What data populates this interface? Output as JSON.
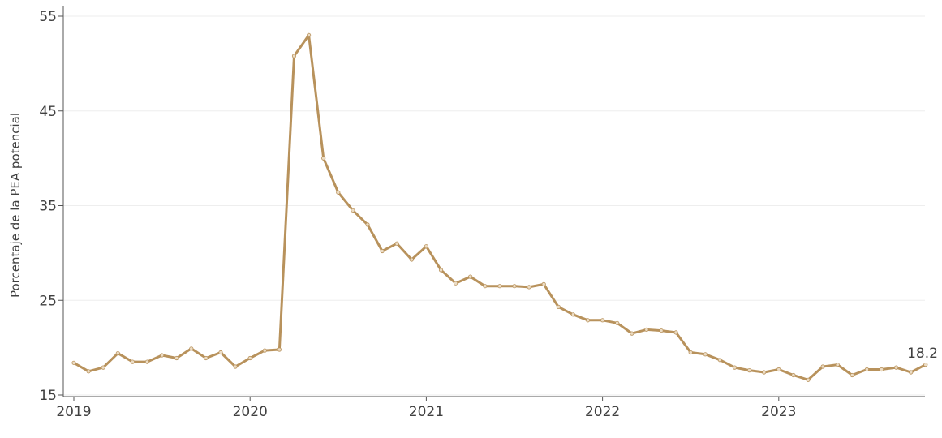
{
  "chart_data": {
    "type": "line",
    "title": "",
    "xlabel": "",
    "ylabel": "Porcentaje de la PEA potencial",
    "x_ticks": [
      "2019",
      "2020",
      "2021",
      "2022",
      "2023"
    ],
    "y_ticks": [
      "15",
      "25",
      "35",
      "45",
      "55"
    ],
    "ylim": [
      15,
      55
    ],
    "xlim": [
      "2019-01",
      "2023-11"
    ],
    "grid": true,
    "color": "#b8925c",
    "end_label": "18.2",
    "series": [
      {
        "x": [
          "2019-01",
          "2019-02",
          "2019-03",
          "2019-04",
          "2019-05",
          "2019-06",
          "2019-07",
          "2019-08",
          "2019-09",
          "2019-10",
          "2019-11",
          "2019-12",
          "2020-01",
          "2020-02",
          "2020-03",
          "2020-04",
          "2020-05",
          "2020-06",
          "2020-07",
          "2020-08",
          "2020-09",
          "2020-10",
          "2020-11",
          "2020-12",
          "2021-01",
          "2021-02",
          "2021-03",
          "2021-04",
          "2021-05",
          "2021-06",
          "2021-07",
          "2021-08",
          "2021-09",
          "2021-10",
          "2021-11",
          "2021-12",
          "2022-01",
          "2022-02",
          "2022-03",
          "2022-04",
          "2022-05",
          "2022-06",
          "2022-07",
          "2022-08",
          "2022-09",
          "2022-10",
          "2022-11",
          "2022-12",
          "2023-01",
          "2023-02",
          "2023-03",
          "2023-04",
          "2023-05",
          "2023-06",
          "2023-07",
          "2023-08",
          "2023-09",
          "2023-10",
          "2023-11"
        ],
        "values": [
          18.4,
          17.5,
          17.9,
          19.4,
          18.5,
          18.5,
          19.2,
          18.9,
          19.9,
          18.9,
          19.5,
          18.0,
          18.9,
          19.7,
          19.8,
          50.8,
          53.0,
          40.0,
          36.4,
          34.5,
          33.0,
          30.2,
          31.0,
          29.3,
          30.7,
          28.2,
          26.8,
          27.5,
          26.5,
          26.5,
          26.5,
          26.4,
          26.7,
          24.3,
          23.5,
          22.9,
          22.9,
          22.6,
          21.5,
          21.9,
          21.8,
          21.6,
          19.5,
          19.3,
          18.7,
          17.9,
          17.6,
          17.4,
          17.7,
          17.1,
          16.6,
          18.0,
          18.2,
          17.1,
          17.7,
          17.7,
          17.9,
          17.4,
          18.2
        ]
      }
    ]
  }
}
